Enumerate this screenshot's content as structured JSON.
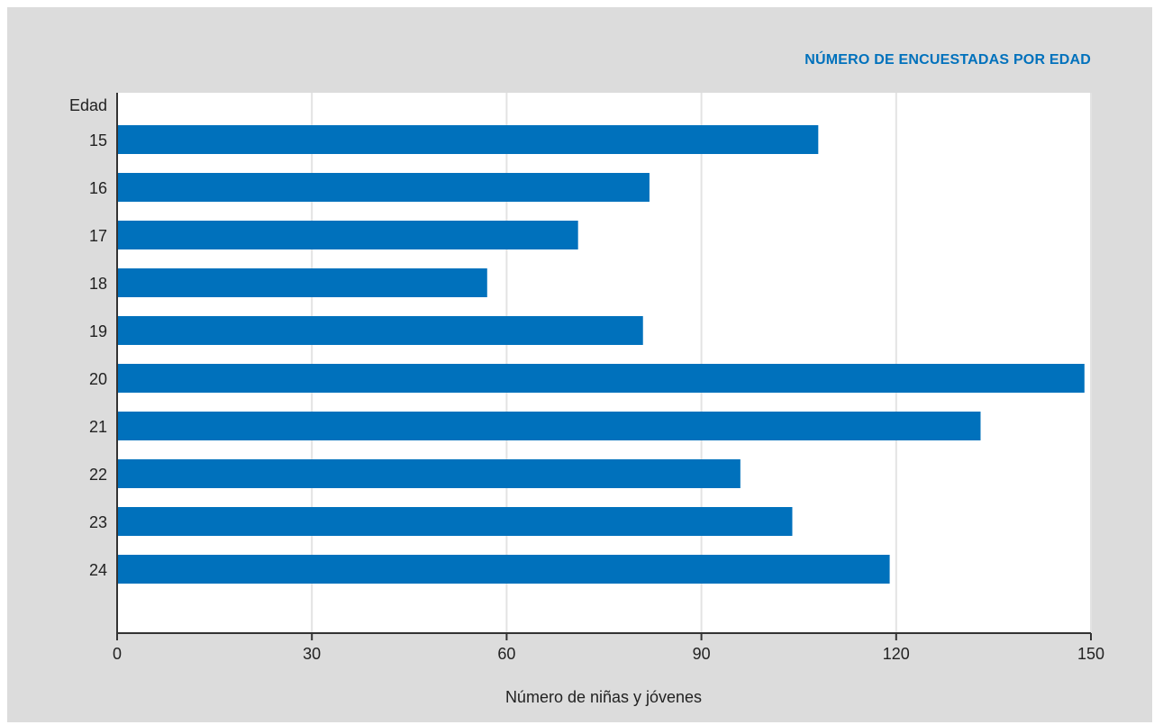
{
  "chart_data": {
    "type": "bar",
    "orientation": "horizontal",
    "title": "NÚMERO DE ENCUESTADAS POR EDAD",
    "xlabel": "Número de niñas y jóvenes",
    "ylabel": "Edad",
    "categories": [
      "15",
      "16",
      "17",
      "18",
      "19",
      "20",
      "21",
      "22",
      "23",
      "24"
    ],
    "values": [
      108,
      82,
      71,
      57,
      81,
      149,
      133,
      96,
      104,
      119
    ],
    "xlim": [
      0,
      150
    ],
    "xticks": [
      "0",
      "30",
      "60",
      "90",
      "120",
      "150"
    ],
    "grid": true,
    "colors": {
      "bar": "#0071bc",
      "panel": "#dcdcdc",
      "plot": "#ffffff",
      "title": "#0071bc"
    }
  }
}
